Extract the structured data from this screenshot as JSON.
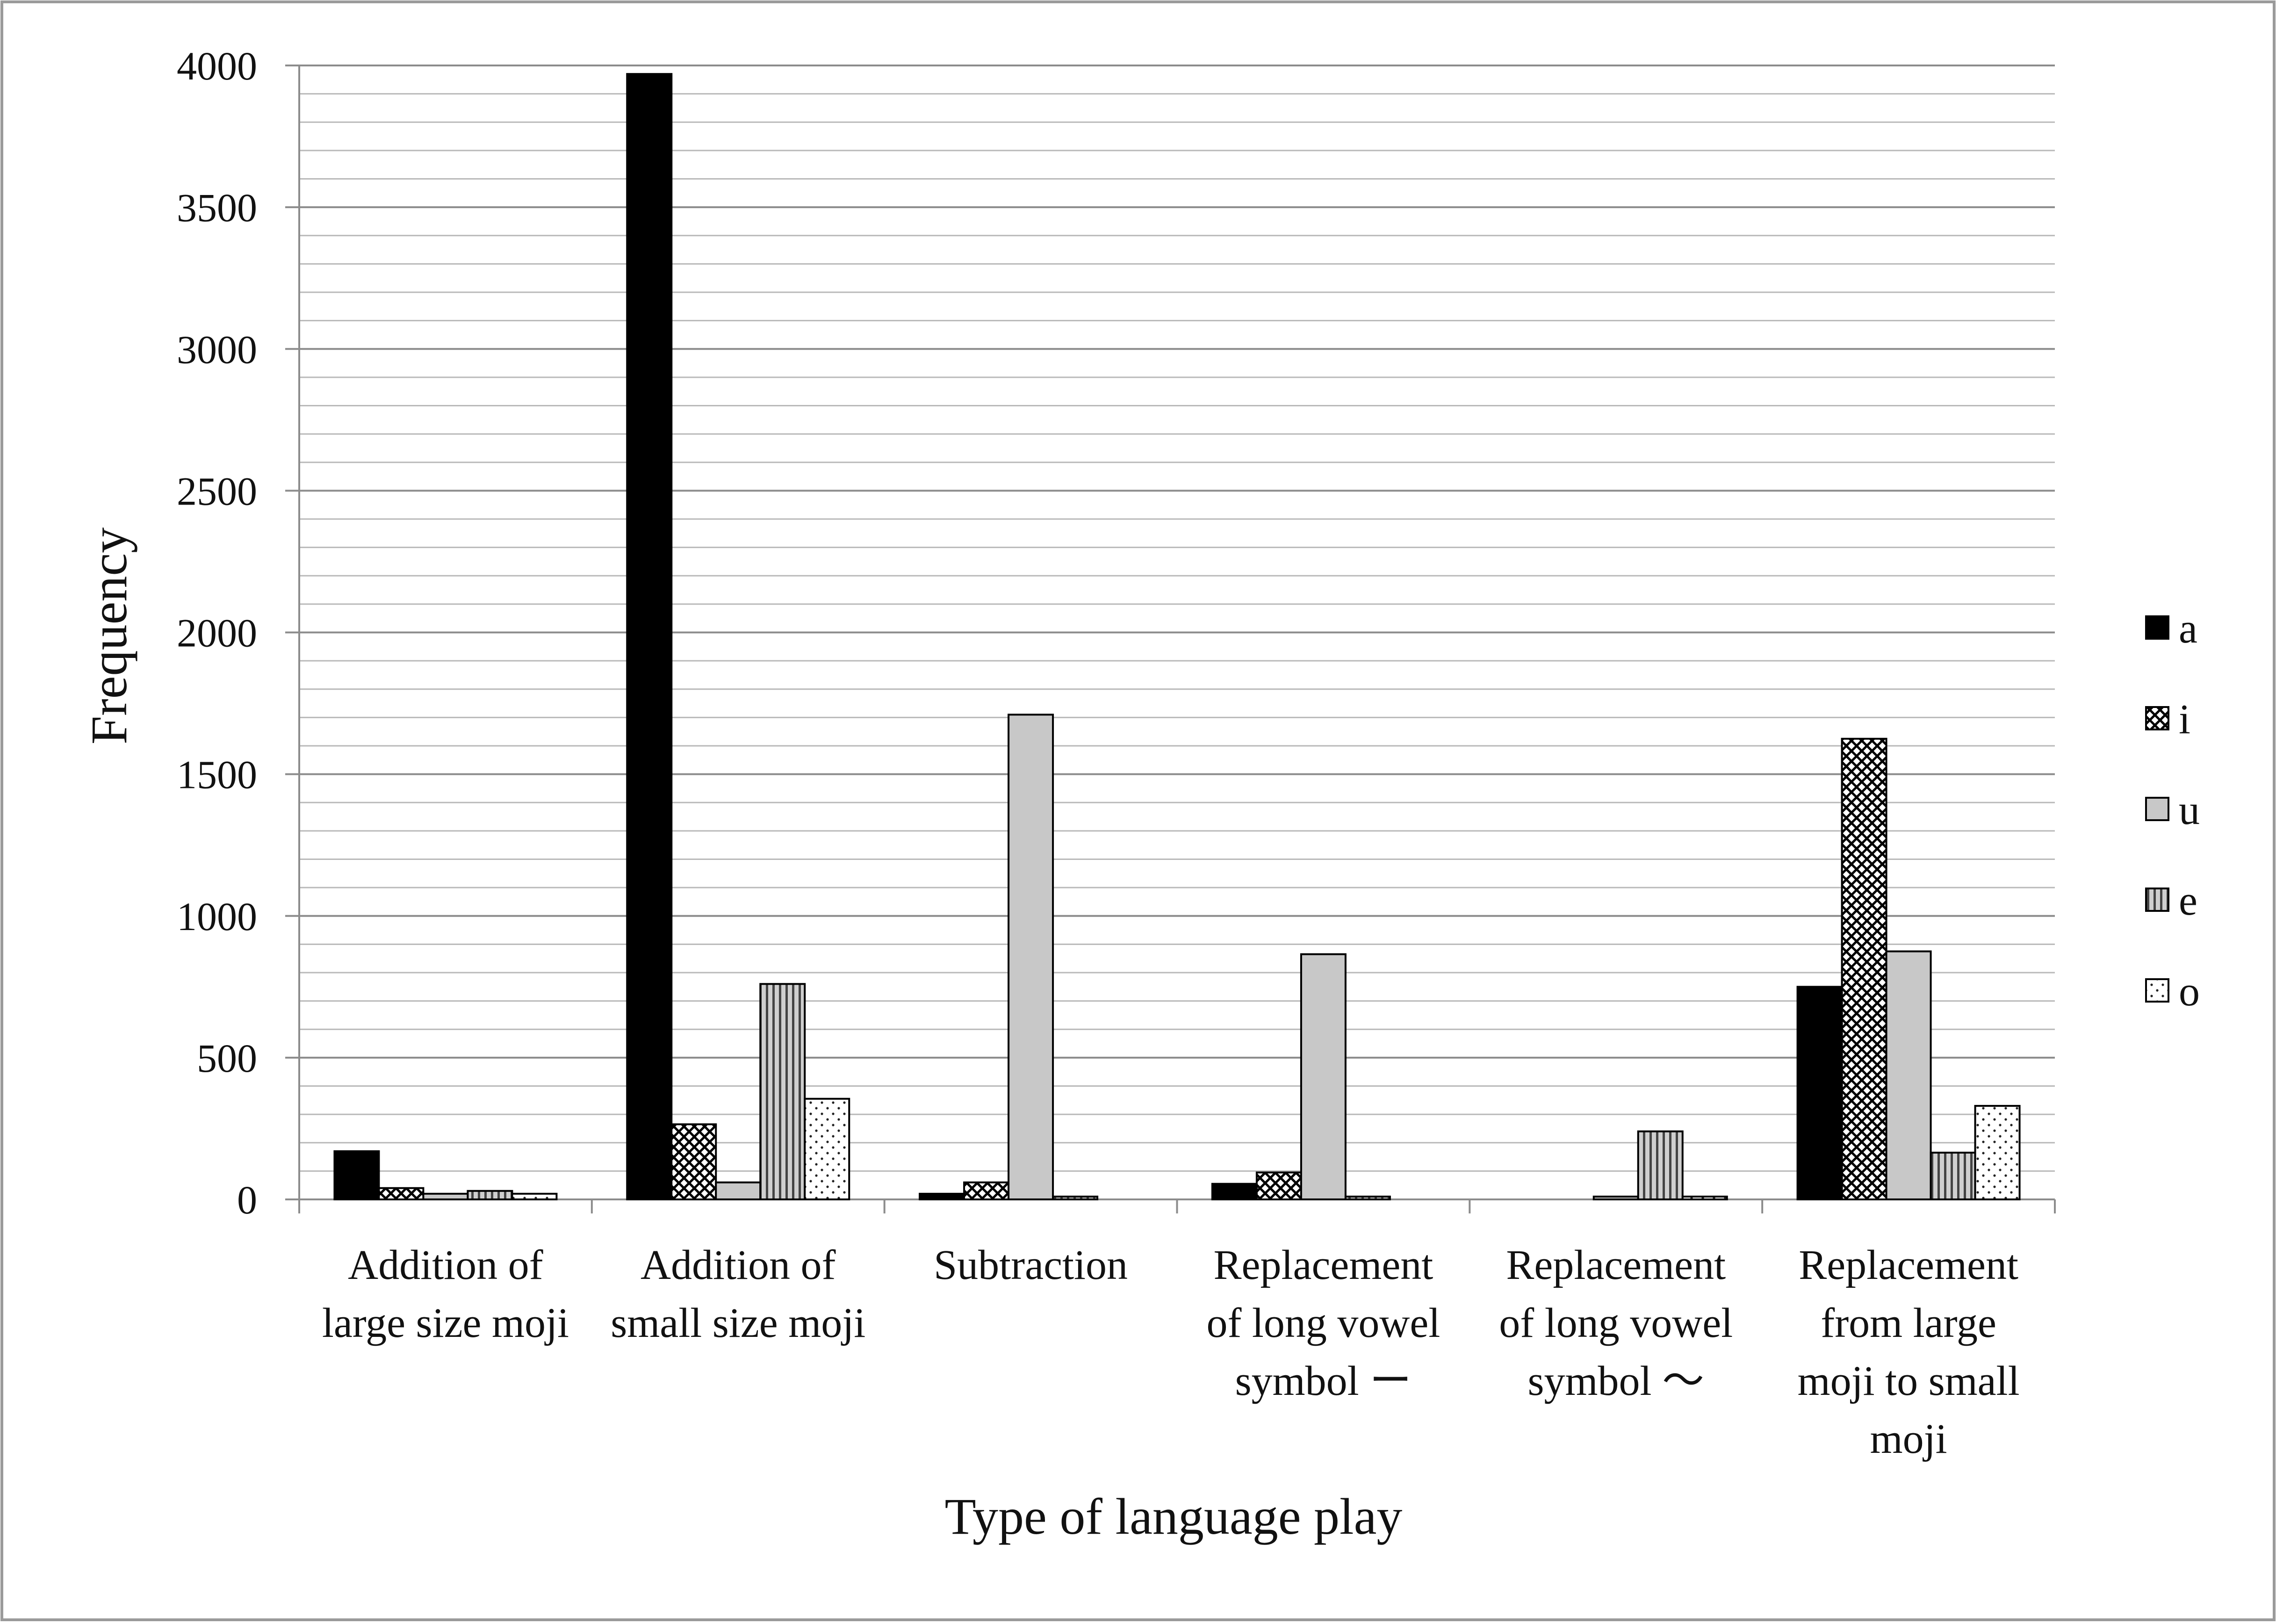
{
  "chart_data": {
    "type": "bar",
    "title": "",
    "xlabel": "Type of language play",
    "ylabel": "Frequency",
    "ylim": [
      0,
      4000
    ],
    "y_major_ticks": [
      0,
      500,
      1000,
      1500,
      2000,
      2500,
      3000,
      3500,
      4000
    ],
    "y_minor_step": 100,
    "grid": true,
    "legend_position": "right",
    "categories": [
      [
        "Addition of",
        "large size moji"
      ],
      [
        "Addition of",
        "small size moji"
      ],
      [
        "Subtraction"
      ],
      [
        "Replacement",
        "of long vowel",
        "symbol ー"
      ],
      [
        "Replacement",
        "of long vowel",
        "symbol 〜"
      ],
      [
        "Replacement",
        "from large",
        "moji to small",
        "moji"
      ]
    ],
    "series": [
      {
        "name": "a",
        "pattern": "solid-black",
        "values": [
          170,
          3970,
          20,
          55,
          0,
          750
        ]
      },
      {
        "name": "i",
        "pattern": "crosshatch",
        "values": [
          40,
          265,
          60,
          95,
          0,
          1625
        ]
      },
      {
        "name": "u",
        "pattern": "solid-gray",
        "values": [
          20,
          60,
          1710,
          865,
          10,
          875
        ]
      },
      {
        "name": "e",
        "pattern": "vertical-stripes",
        "values": [
          30,
          760,
          10,
          10,
          240,
          165
        ]
      },
      {
        "name": "o",
        "pattern": "dots",
        "values": [
          20,
          355,
          0,
          0,
          10,
          330
        ]
      }
    ]
  }
}
